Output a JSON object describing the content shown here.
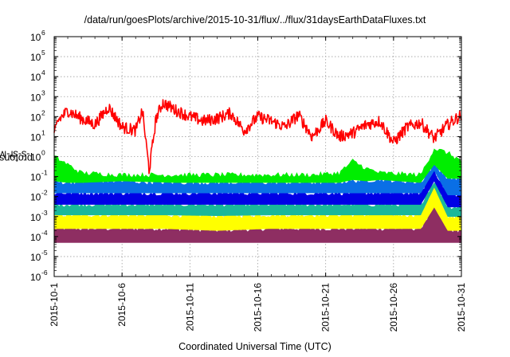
{
  "chart_data": {
    "type": "line",
    "title": "/data/run/goesPlots/archive/2015-10-31/flux/../flux/31daysEarthDataFluxes.txt",
    "xlabel": "Coordinated Universal Time (UTC)",
    "ylabel": {
      "prefix": "protons/cm",
      "sup": "2",
      "suffix": "-s-sr-MeV"
    },
    "scale": {
      "y": "log"
    },
    "xlim": [
      "2015-10-01",
      "2015-10-31"
    ],
    "ylim": [
      1e-06,
      1000000.0
    ],
    "grid": true,
    "legend": "none",
    "x_ticks": [
      "2015-10-1",
      "2015-10-6",
      "2015-10-11",
      "2015-10-16",
      "2015-10-21",
      "2015-10-26",
      "2015-10-31"
    ],
    "y_ticks": [
      {
        "base": "10",
        "exp": "-6"
      },
      {
        "base": "10",
        "exp": "-5"
      },
      {
        "base": "10",
        "exp": "-4"
      },
      {
        "base": "10",
        "exp": "-3"
      },
      {
        "base": "10",
        "exp": "-2"
      },
      {
        "base": "10",
        "exp": "-1"
      },
      {
        "base": "10",
        "exp": "0"
      },
      {
        "base": "10",
        "exp": "1"
      },
      {
        "base": "10",
        "exp": "2"
      },
      {
        "base": "10",
        "exp": "3"
      },
      {
        "base": "10",
        "exp": "4"
      },
      {
        "base": "10",
        "exp": "5"
      },
      {
        "base": "10",
        "exp": "6"
      }
    ],
    "series": [
      {
        "color": "#8e2e62",
        "x": [
          "2015-10-01",
          "2015-10-05",
          "2015-10-09",
          "2015-10-13",
          "2015-10-17",
          "2015-10-21",
          "2015-10-25",
          "2015-10-28",
          "2015-10-29",
          "2015-10-30",
          "2015-10-31"
        ],
        "low": [
          5e-05,
          5e-05,
          5e-05,
          5e-05,
          5e-05,
          5e-05,
          5e-05,
          5e-05,
          5e-05,
          5e-05,
          5e-05
        ],
        "high": [
          0.00025,
          0.00025,
          0.00025,
          0.0002,
          0.00025,
          0.00025,
          0.00025,
          0.00025,
          0.003,
          0.0002,
          0.0002
        ]
      },
      {
        "color": "#ffff00",
        "x": [
          "2015-10-01",
          "2015-10-05",
          "2015-10-09",
          "2015-10-13",
          "2015-10-17",
          "2015-10-21",
          "2015-10-25",
          "2015-10-28",
          "2015-10-29",
          "2015-10-30",
          "2015-10-31"
        ],
        "low": [
          0.00025,
          0.00025,
          0.00025,
          0.0002,
          0.00025,
          0.00025,
          0.00025,
          0.00025,
          0.003,
          0.0002,
          0.0002
        ],
        "high": [
          0.0012,
          0.0012,
          0.0012,
          0.0011,
          0.0012,
          0.0012,
          0.0012,
          0.0012,
          0.03,
          0.001,
          0.001
        ]
      },
      {
        "color": "#1ab89a",
        "x": [
          "2015-10-01",
          "2015-10-05",
          "2015-10-09",
          "2015-10-13",
          "2015-10-17",
          "2015-10-21",
          "2015-10-25",
          "2015-10-28",
          "2015-10-29",
          "2015-10-30",
          "2015-10-31"
        ],
        "low": [
          0.0012,
          0.0012,
          0.0012,
          0.0011,
          0.0012,
          0.0012,
          0.0012,
          0.0012,
          0.03,
          0.001,
          0.001
        ],
        "high": [
          0.004,
          0.004,
          0.004,
          0.004,
          0.004,
          0.004,
          0.004,
          0.004,
          0.06,
          0.003,
          0.003
        ]
      },
      {
        "color": "#0000e6",
        "x": [
          "2015-10-01",
          "2015-10-05",
          "2015-10-09",
          "2015-10-13",
          "2015-10-17",
          "2015-10-21",
          "2015-10-25",
          "2015-10-28",
          "2015-10-29",
          "2015-10-30",
          "2015-10-31"
        ],
        "low": [
          0.004,
          0.004,
          0.004,
          0.004,
          0.004,
          0.004,
          0.004,
          0.004,
          0.06,
          0.003,
          0.003
        ],
        "high": [
          0.015,
          0.015,
          0.015,
          0.015,
          0.015,
          0.015,
          0.015,
          0.015,
          0.2,
          0.012,
          0.012
        ]
      },
      {
        "color": "#0a6fe6",
        "x": [
          "2015-10-01",
          "2015-10-05",
          "2015-10-09",
          "2015-10-13",
          "2015-10-17",
          "2015-10-21",
          "2015-10-25",
          "2015-10-28",
          "2015-10-29",
          "2015-10-30",
          "2015-10-31"
        ],
        "low": [
          0.015,
          0.015,
          0.015,
          0.015,
          0.015,
          0.015,
          0.015,
          0.015,
          0.2,
          0.012,
          0.012
        ],
        "high": [
          0.05,
          0.06,
          0.05,
          0.05,
          0.05,
          0.05,
          0.07,
          0.05,
          0.4,
          0.08,
          0.08
        ]
      },
      {
        "color": "#00ee00",
        "x": [
          "2015-10-01",
          "2015-10-02",
          "2015-10-03",
          "2015-10-06",
          "2015-10-10",
          "2015-10-15",
          "2015-10-20",
          "2015-10-22",
          "2015-10-23",
          "2015-10-24",
          "2015-10-25",
          "2015-10-28",
          "2015-10-29",
          "2015-10-30",
          "2015-10-31"
        ],
        "low": [
          0.06,
          0.05,
          0.05,
          0.06,
          0.05,
          0.05,
          0.05,
          0.05,
          0.07,
          0.06,
          0.07,
          0.05,
          0.4,
          0.08,
          0.08
        ],
        "high": [
          1.0,
          0.4,
          0.15,
          0.12,
          0.12,
          0.12,
          0.12,
          0.15,
          0.6,
          0.25,
          0.15,
          0.12,
          2.5,
          1.5,
          0.6
        ]
      },
      {
        "color": "#ff0000",
        "x": [
          "2015-10-01",
          "2015-10-01 06:00",
          "2015-10-02",
          "2015-10-03",
          "2015-10-04",
          "2015-10-05",
          "2015-10-06",
          "2015-10-07",
          "2015-10-07 12:00",
          "2015-10-08",
          "2015-10-08 12:00",
          "2015-10-09",
          "2015-10-10",
          "2015-10-11",
          "2015-10-12",
          "2015-10-13",
          "2015-10-14",
          "2015-10-15",
          "2015-10-16",
          "2015-10-17",
          "2015-10-18",
          "2015-10-19",
          "2015-10-20",
          "2015-10-21",
          "2015-10-22",
          "2015-10-23",
          "2015-10-24",
          "2015-10-25",
          "2015-10-26",
          "2015-10-27",
          "2015-10-28",
          "2015-10-29",
          "2015-10-30",
          "2015-10-31"
        ],
        "y": [
          10,
          60,
          200,
          80,
          40,
          300,
          30,
          20,
          200,
          0.2,
          80,
          500,
          200,
          100,
          60,
          80,
          150,
          20,
          100,
          60,
          30,
          120,
          10,
          60,
          10,
          15,
          40,
          60,
          5,
          30,
          50,
          8,
          40,
          120
        ]
      }
    ]
  }
}
